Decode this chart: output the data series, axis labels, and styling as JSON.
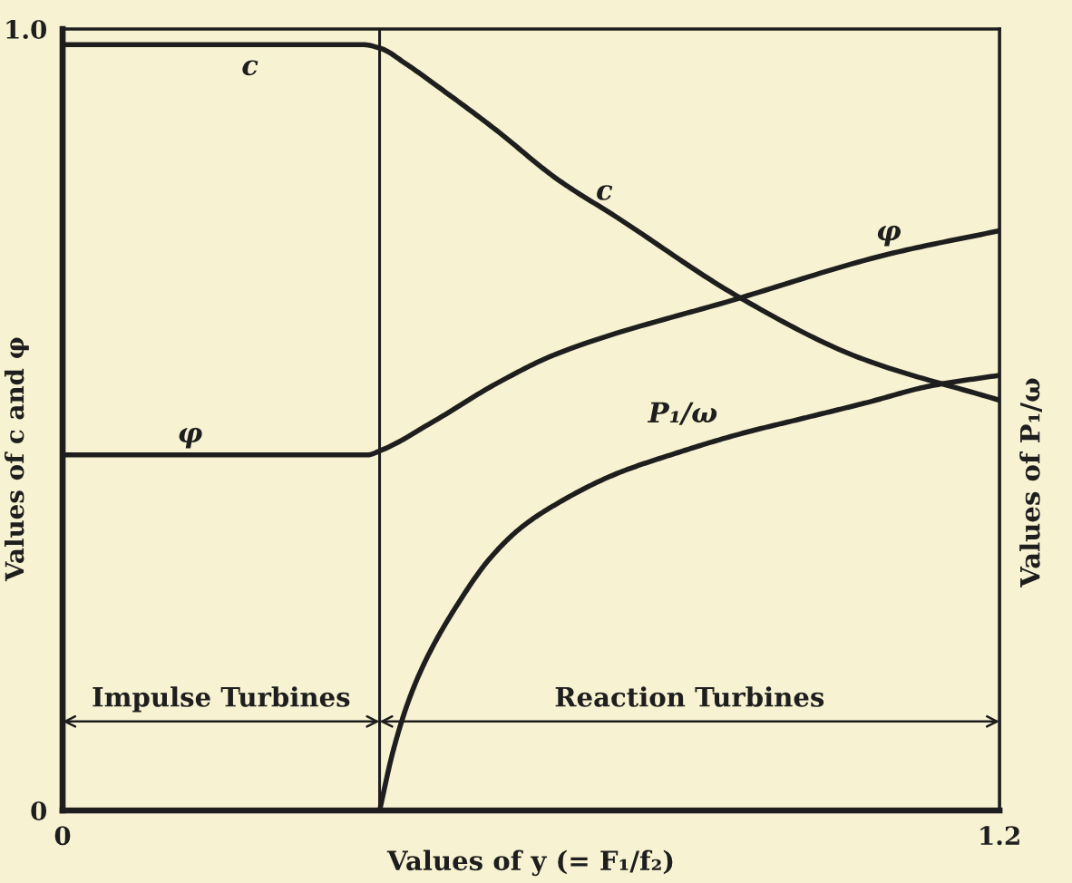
{
  "chart_data": {
    "type": "line",
    "xlabel": "Values of y (= F₁/f₂)",
    "ylabel": "Values of c and φ",
    "y2label": "Values of P₁/ω",
    "xlim": [
      0,
      1.2
    ],
    "ylim": [
      0,
      1
    ],
    "xticks": [
      0,
      1.2
    ],
    "yticks": [
      0,
      {
        "value": 1,
        "label": "1.0"
      }
    ],
    "series": [
      {
        "name": "c",
        "color": "#1e1e1e",
        "x": [
          0,
          0.385,
          0.408,
          0.439,
          0.477,
          0.555,
          0.632,
          0.71,
          0.868,
          1.019,
          1.2
        ],
        "values": [
          0.98,
          0.98,
          0.975,
          0.956,
          0.929,
          0.871,
          0.809,
          0.759,
          0.656,
          0.58,
          0.525
        ]
      },
      {
        "name": "φ",
        "color": "#1e1e1e",
        "x": [
          0,
          0.39,
          0.408,
          0.477,
          0.555,
          0.632,
          0.868,
          1.058,
          1.2
        ],
        "values": [
          0.455,
          0.455,
          0.461,
          0.499,
          0.546,
          0.584,
          0.656,
          0.712,
          0.742
        ]
      },
      {
        "name": "P₁/ω",
        "color": "#1e1e1e",
        "x": [
          0.406,
          0.423,
          0.443,
          0.465,
          0.506,
          0.546,
          0.586,
          0.627,
          0.707,
          0.788,
          0.868,
          0.949,
          1.03,
          1.11,
          1.2
        ],
        "values": [
          0,
          0.075,
          0.14,
          0.192,
          0.264,
          0.321,
          0.361,
          0.389,
          0.43,
          0.458,
          0.482,
          0.502,
          0.522,
          0.543,
          0.557
        ]
      }
    ],
    "ref_lines": [
      {
        "axis": "x",
        "value": 0.406
      }
    ],
    "annotations": [
      {
        "text": "c",
        "x": 0.24,
        "y": 0.98
      },
      {
        "text": "φ",
        "x": 0.16,
        "y": 0.455
      },
      "Impulse Turbines",
      "Reaction Turbines"
    ]
  }
}
